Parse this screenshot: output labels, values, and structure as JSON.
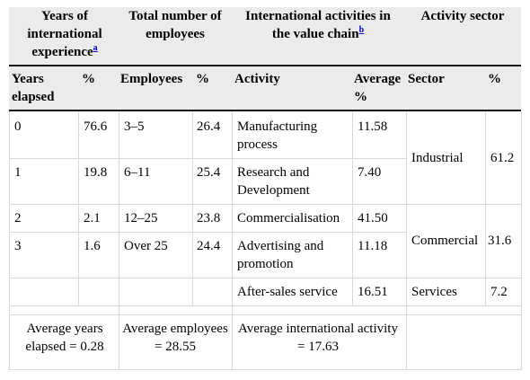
{
  "group_headers": {
    "experience": "Years of international experience",
    "experience_note": "a",
    "employees": "Total number of employees",
    "activities": "International activities in the value chain",
    "activities_note": "b",
    "sector": "Activity sector"
  },
  "sub_headers": {
    "years_elapsed": "Years elapsed",
    "years_pct": "%",
    "employees": "Employees",
    "employees_pct": "%",
    "activity": "Activity",
    "average_pct": "Average %",
    "sector": "Sector",
    "sector_pct": "%"
  },
  "rows": [
    {
      "years": "0",
      "years_pct": "76.6",
      "employees": "3–5",
      "employees_pct": "26.4",
      "activity": "Manufacturing process",
      "average": "11.58"
    },
    {
      "years": "1",
      "years_pct": "19.8",
      "employees": "6–11",
      "employees_pct": "25.4",
      "activity": "Research and Development",
      "average": "7.40"
    },
    {
      "years": "2",
      "years_pct": "2.1",
      "employees": "12–25",
      "employees_pct": "23.8",
      "activity": "Commercialisation",
      "average": "41.50"
    },
    {
      "years": "3",
      "years_pct": "1.6",
      "employees": "Over 25",
      "employees_pct": "24.4",
      "activity": "Advertising and promotion",
      "average": "11.18"
    },
    {
      "years": "",
      "years_pct": "",
      "employees": "",
      "employees_pct": "",
      "activity": "After-sales service",
      "average": "16.51"
    }
  ],
  "sectors": [
    {
      "name": "Industrial",
      "pct": "61.2"
    },
    {
      "name": "Commercial",
      "pct": "31.6"
    },
    {
      "name": "Services",
      "pct": "7.2"
    }
  ],
  "footer": {
    "avg_years": "Average years elapsed = 0.28",
    "avg_employees": "Average employees = 28.55",
    "avg_activity": "Average international activity = 17.63"
  }
}
